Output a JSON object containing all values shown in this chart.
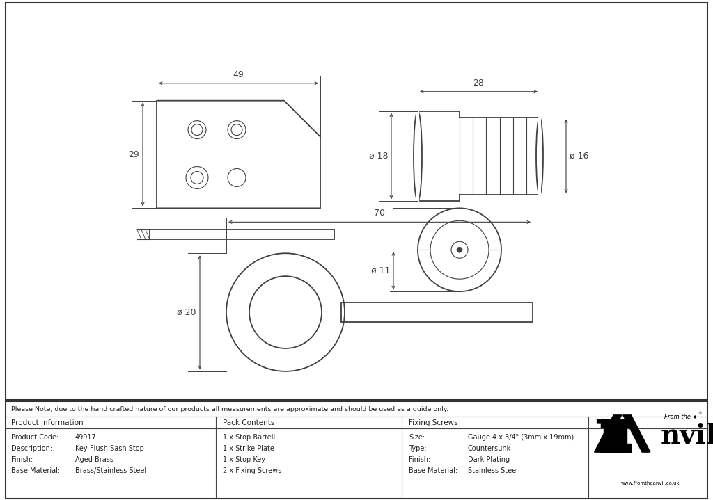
{
  "note_text": "Please Note, due to the hand crafted nature of our products all measurements are approximate and should be used as a guide only.",
  "product_info": {
    "header": "Product Information",
    "rows": [
      [
        "Product Code:",
        "49917"
      ],
      [
        "Description:",
        "Key-Flush Sash Stop"
      ],
      [
        "Finish:",
        "Aged Brass"
      ],
      [
        "Base Material:",
        "Brass/Stainless Steel"
      ]
    ]
  },
  "pack_contents": {
    "header": "Pack Contents",
    "rows": [
      "1 x Stop Barrell",
      "1 x Strike Plate",
      "1 x Stop Key",
      "2 x Fixing Screws"
    ]
  },
  "fixing_screws": {
    "header": "Fixing Screws",
    "rows": [
      [
        "Size:",
        "Gauge 4 x 3/4\" (3mm x 19mm)"
      ],
      [
        "Type:",
        "Countersunk"
      ],
      [
        "Finish:",
        "Dark Plating"
      ],
      [
        "Base Material:",
        "Stainless Steel"
      ]
    ]
  },
  "line_color": "#404040",
  "dim_color": "#404040"
}
